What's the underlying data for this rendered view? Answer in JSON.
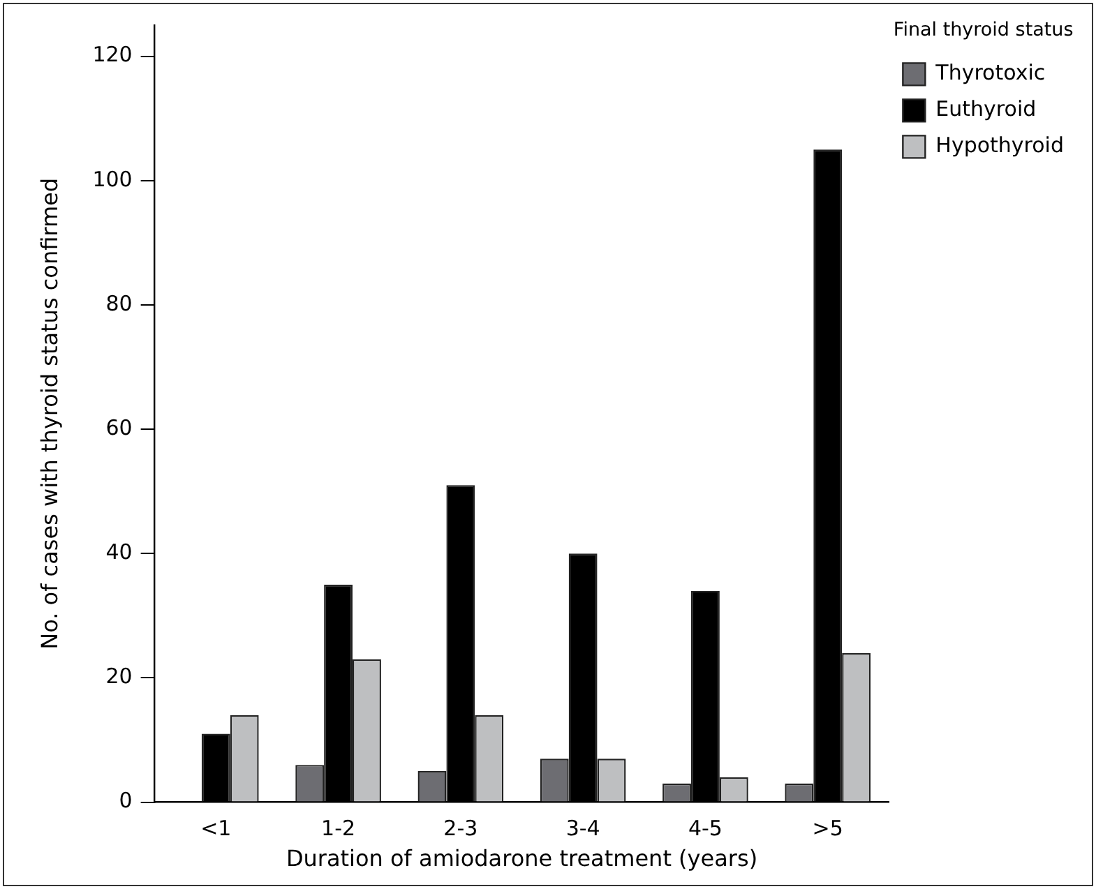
{
  "chart_data": {
    "type": "bar",
    "xlabel": "Duration of amiodarone treatment (years)",
    "ylabel": "No. of cases with thyroid status confirmed",
    "legend_title": "Final thyroid status",
    "categories": [
      "<1",
      "1-2",
      "2-3",
      "3-4",
      "4-5",
      ">5"
    ],
    "series": [
      {
        "name": "Thyrotoxic",
        "color": "#6d6d72",
        "values": [
          null,
          6,
          5,
          7,
          3,
          3
        ]
      },
      {
        "name": "Euthyroid",
        "color": "#000000",
        "values": [
          11,
          35,
          51,
          40,
          34,
          105
        ]
      },
      {
        "name": "Hypothyroid",
        "color": "#bebfc1",
        "values": [
          14,
          23,
          14,
          7,
          4,
          24
        ]
      }
    ],
    "ylim": [
      0,
      125
    ],
    "yticks": [
      0,
      20,
      40,
      60,
      80,
      100,
      120
    ],
    "grid": false,
    "legend": "top right"
  }
}
